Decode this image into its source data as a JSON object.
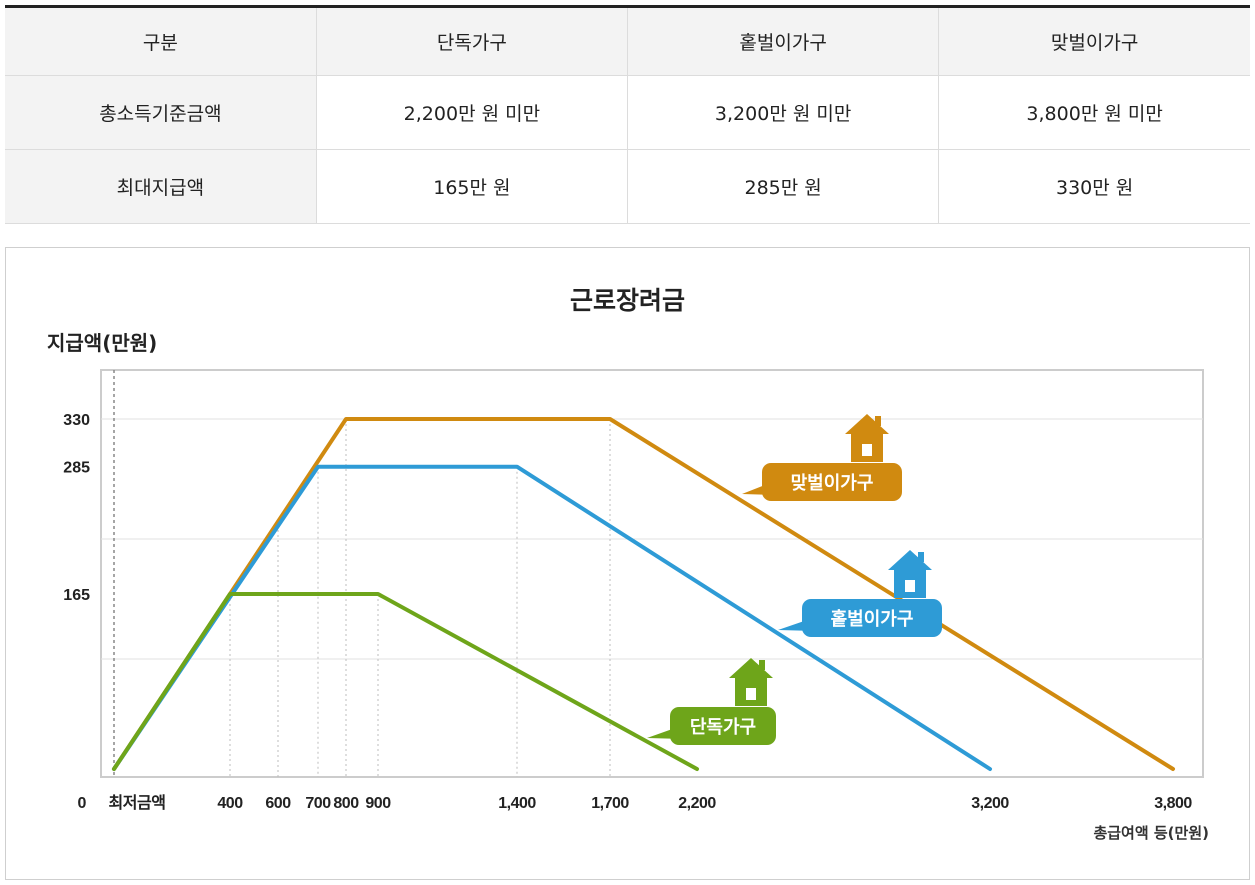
{
  "table": {
    "headers": [
      "구분",
      "단독가구",
      "홑벌이가구",
      "맞벌이가구"
    ],
    "rows": [
      [
        "총소득기준금액",
        "2,200만 원 미만",
        "3,200만 원 미만",
        "3,800만 원 미만"
      ],
      [
        "최대지급액",
        "165만 원",
        "285만 원",
        "330만 원"
      ]
    ]
  },
  "chart_data": {
    "type": "line",
    "title": "근로장려금",
    "ylabel": "지급액(만원)",
    "xlabel": "총급여액 등(만원)",
    "x_ticks": [
      {
        "value": 0,
        "label": "최저금액"
      },
      {
        "value": 400,
        "label": "400"
      },
      {
        "value": 600,
        "label": "600"
      },
      {
        "value": 700,
        "label": "700"
      },
      {
        "value": 800,
        "label": "800"
      },
      {
        "value": 900,
        "label": "900"
      },
      {
        "value": 1400,
        "label": "1,400"
      },
      {
        "value": 1700,
        "label": "1,700"
      },
      {
        "value": 2200,
        "label": "2,200"
      },
      {
        "value": 3200,
        "label": "3,200"
      },
      {
        "value": 3800,
        "label": "3,800"
      }
    ],
    "origin_label": "0",
    "y_ticks": [
      165,
      285,
      330
    ],
    "series": [
      {
        "name": "단독가구",
        "color": "#6ea51a",
        "x": [
          0,
          400,
          900,
          2200
        ],
        "y": [
          0,
          165,
          165,
          0
        ]
      },
      {
        "name": "홑벌이가구",
        "color": "#2e9bd6",
        "x": [
          0,
          700,
          1400,
          3200
        ],
        "y": [
          0,
          285,
          285,
          0
        ]
      },
      {
        "name": "맞벌이가구",
        "color": "#d08a10",
        "x": [
          0,
          800,
          1700,
          3800
        ],
        "y": [
          0,
          330,
          330,
          0
        ]
      }
    ],
    "legend_style": "callout labels with house icons",
    "grid": true
  }
}
